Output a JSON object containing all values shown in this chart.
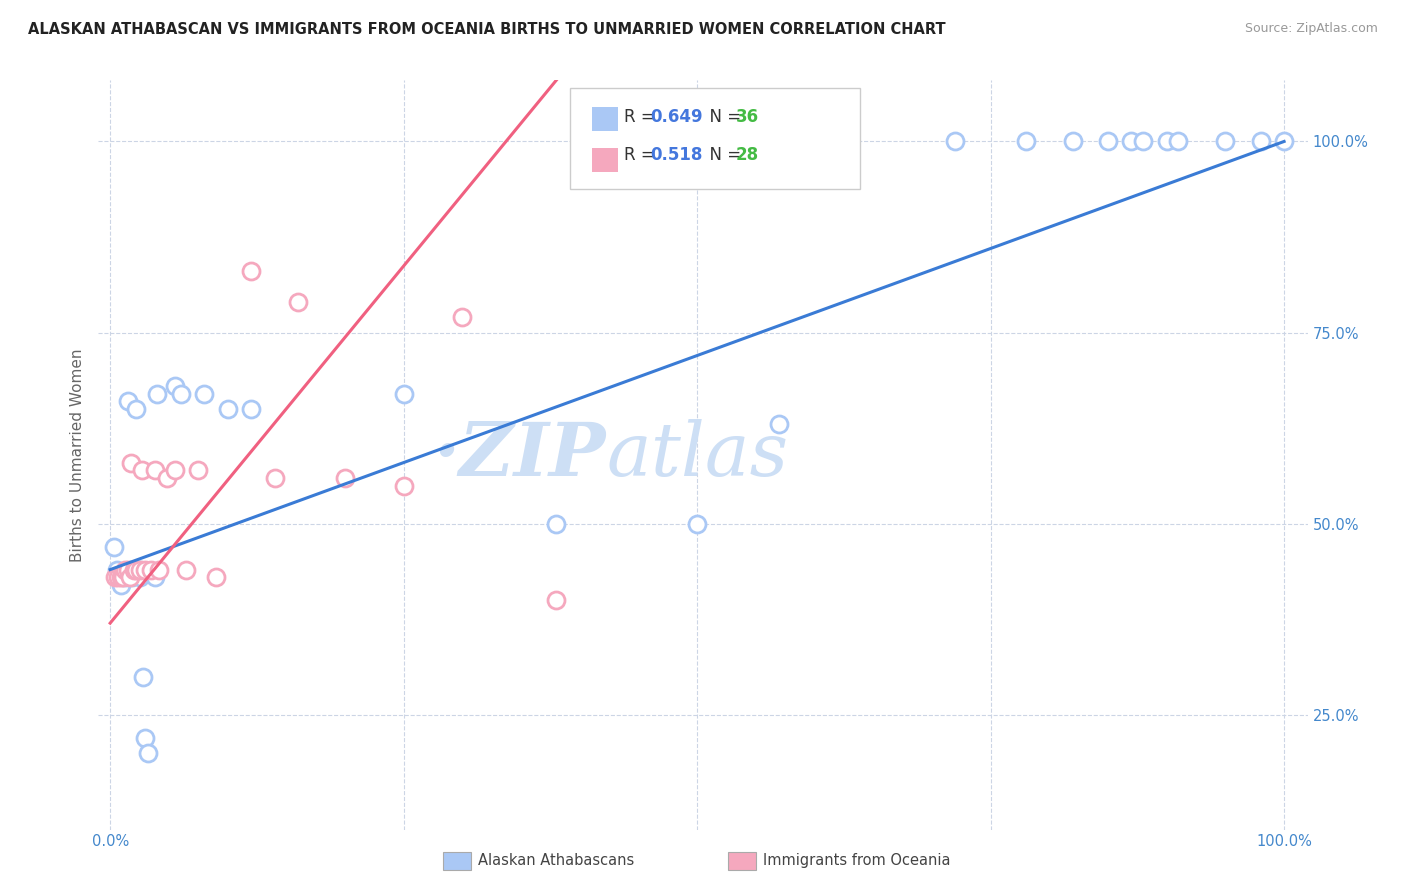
{
  "title": "ALASKAN ATHABASCAN VS IMMIGRANTS FROM OCEANIA BIRTHS TO UNMARRIED WOMEN CORRELATION CHART",
  "source": "Source: ZipAtlas.com",
  "ylabel": "Births to Unmarried Women",
  "ytick_labels": [
    "25.0%",
    "50.0%",
    "75.0%",
    "100.0%"
  ],
  "ytick_values": [
    0.25,
    0.5,
    0.75,
    1.0
  ],
  "xlim": [
    -0.01,
    1.02
  ],
  "ylim": [
    0.1,
    1.08
  ],
  "blue_r": 0.649,
  "blue_n": 36,
  "pink_r": 0.518,
  "pink_n": 28,
  "blue_color": "#aac8f5",
  "pink_color": "#f5a8be",
  "blue_line_color": "#3a7bd5",
  "pink_line_color": "#f06080",
  "legend_r_color": "#4477dd",
  "legend_n_color": "#44bb44",
  "watermark_zip": "ZIP",
  "watermark_atlas": "atlas",
  "watermark_color": "#cddff5",
  "blue_scatter_x": [
    0.003,
    0.006,
    0.009,
    0.012,
    0.015,
    0.015,
    0.018,
    0.019,
    0.022,
    0.025,
    0.025,
    0.028,
    0.03,
    0.032,
    0.038,
    0.04,
    0.055,
    0.06,
    0.08,
    0.1,
    0.12,
    0.25,
    0.38,
    0.5,
    0.57,
    0.72,
    0.78,
    0.82,
    0.85,
    0.87,
    0.88,
    0.9,
    0.91,
    0.95,
    0.98,
    1.0
  ],
  "blue_scatter_y": [
    0.47,
    0.44,
    0.42,
    0.43,
    0.43,
    0.66,
    0.44,
    0.43,
    0.65,
    0.44,
    0.43,
    0.3,
    0.22,
    0.2,
    0.43,
    0.67,
    0.68,
    0.67,
    0.67,
    0.65,
    0.65,
    0.67,
    0.5,
    0.5,
    0.63,
    1.0,
    1.0,
    1.0,
    1.0,
    1.0,
    1.0,
    1.0,
    1.0,
    1.0,
    1.0,
    1.0
  ],
  "pink_scatter_x": [
    0.004,
    0.007,
    0.009,
    0.011,
    0.013,
    0.015,
    0.017,
    0.018,
    0.02,
    0.022,
    0.025,
    0.027,
    0.03,
    0.035,
    0.038,
    0.042,
    0.048,
    0.055,
    0.065,
    0.075,
    0.09,
    0.12,
    0.14,
    0.16,
    0.2,
    0.25,
    0.3,
    0.38
  ],
  "pink_scatter_y": [
    0.43,
    0.43,
    0.43,
    0.43,
    0.44,
    0.44,
    0.43,
    0.58,
    0.44,
    0.44,
    0.44,
    0.57,
    0.44,
    0.44,
    0.57,
    0.44,
    0.56,
    0.57,
    0.44,
    0.57,
    0.43,
    0.83,
    0.56,
    0.79,
    0.56,
    0.55,
    0.77,
    0.4
  ],
  "blue_line_x0": 0.0,
  "blue_line_y0": 0.44,
  "blue_line_x1": 1.0,
  "blue_line_y1": 1.0,
  "pink_line_x0": 0.0,
  "pink_line_y0": 0.37,
  "pink_line_x1": 0.38,
  "pink_line_y1": 1.08
}
